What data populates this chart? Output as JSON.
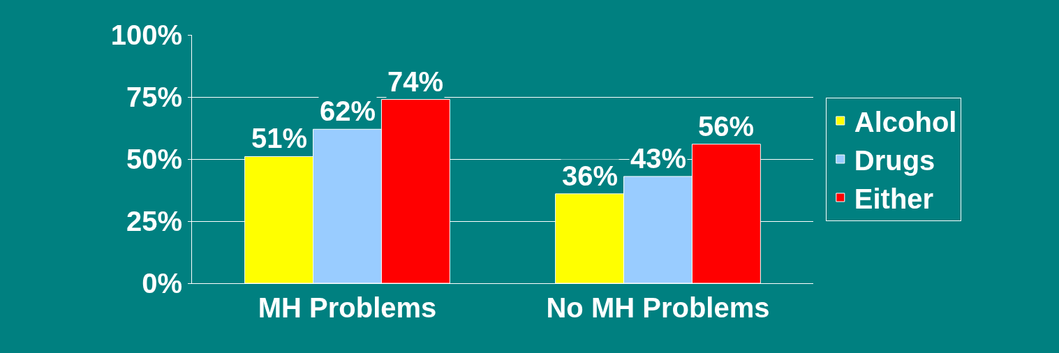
{
  "chart_data": {
    "type": "bar",
    "categories": [
      "MH Problems",
      "No MH Problems"
    ],
    "series": [
      {
        "name": "Alcohol",
        "color": "#ffff00",
        "values": [
          51,
          36
        ],
        "value_labels": [
          "51%",
          "36%"
        ]
      },
      {
        "name": "Drugs",
        "color": "#99ccff",
        "values": [
          62,
          43
        ],
        "value_labels": [
          "62%",
          "43%"
        ]
      },
      {
        "name": "Either",
        "color": "#ff0000",
        "values": [
          74,
          56
        ],
        "value_labels": [
          "74%",
          "56%"
        ]
      }
    ],
    "ylim": [
      0,
      100
    ],
    "yticks": [
      {
        "value": 0,
        "label": "0%"
      },
      {
        "value": 25,
        "label": "25%"
      },
      {
        "value": 50,
        "label": "50%"
      },
      {
        "value": 75,
        "label": "75%"
      },
      {
        "value": 100,
        "label": "100%"
      }
    ],
    "grid": "y",
    "legend": "right"
  }
}
